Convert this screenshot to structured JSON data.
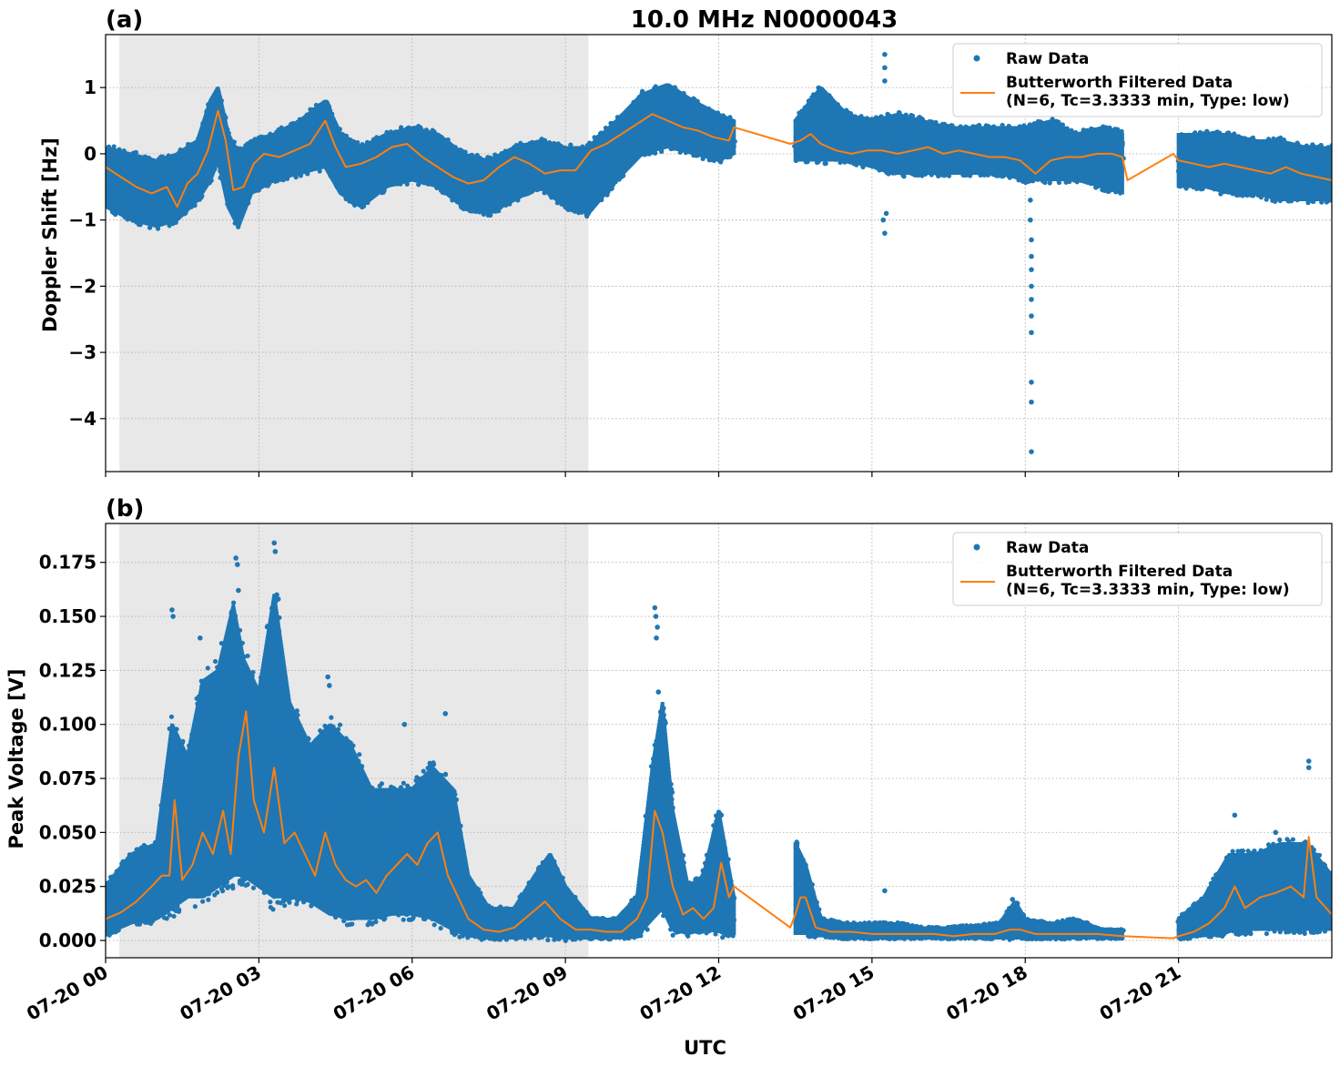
{
  "chart_data": [
    {
      "type": "scatter",
      "panel_label": "(a)",
      "title": "10.0 MHz N0000043",
      "xlabel": "",
      "ylabel": "Doppler Shift [Hz]",
      "xlim": [
        0,
        24
      ],
      "ylim": [
        -4.8,
        1.8
      ],
      "yticks": [
        1,
        0,
        -1,
        -2,
        -3,
        -4
      ],
      "ytick_labels": [
        "1",
        "0",
        "−1",
        "−2",
        "−3",
        "−4"
      ],
      "grid": true,
      "shaded_region": {
        "x": [
          0.27,
          9.45
        ],
        "color": "#e8e8e8"
      },
      "legend": {
        "position": "top-right",
        "entries": [
          "Raw Data",
          "Butterworth Filtered Data\n(N=6, Tc=3.3333 min, Type: low)"
        ]
      },
      "series": [
        {
          "name": "Raw Data",
          "color": "#1f77b4",
          "envelope_x": [
            0,
            0.5,
            1.0,
            1.4,
            1.8,
            2.05,
            2.2,
            2.4,
            2.6,
            2.85,
            3.3,
            3.8,
            4.3,
            4.6,
            5.0,
            5.5,
            6.0,
            6.5,
            7.0,
            7.5,
            8.0,
            8.5,
            9.0,
            9.45,
            10.0,
            10.5,
            11.0,
            11.5,
            12.0,
            12.3
          ],
          "envelope_low": [
            -0.8,
            -1.0,
            -1.1,
            -1.0,
            -0.7,
            -0.4,
            -0.1,
            -0.8,
            -1.1,
            -0.6,
            -0.4,
            -0.3,
            -0.2,
            -0.6,
            -0.8,
            -0.5,
            -0.4,
            -0.5,
            -0.8,
            -0.9,
            -0.7,
            -0.5,
            -0.8,
            -0.9,
            -0.4,
            0.0,
            0.1,
            0.0,
            -0.1,
            0.0
          ],
          "envelope_high": [
            0.1,
            0.0,
            -0.1,
            0.0,
            0.2,
            0.8,
            1.0,
            0.3,
            0.0,
            0.2,
            0.3,
            0.5,
            0.8,
            0.3,
            0.1,
            0.3,
            0.4,
            0.3,
            0.0,
            -0.1,
            0.1,
            0.2,
            0.1,
            0.1,
            0.5,
            0.9,
            1.05,
            0.8,
            0.6,
            0.5
          ],
          "envelope2_x": [
            13.5,
            14.0,
            14.5,
            15.0,
            15.5,
            16.0,
            16.5,
            17.0,
            17.5,
            18.0,
            18.5,
            19.0,
            19.5,
            19.9
          ],
          "envelope2_low": [
            -0.1,
            -0.1,
            -0.1,
            -0.2,
            -0.3,
            -0.3,
            -0.3,
            -0.3,
            -0.3,
            -0.4,
            -0.4,
            -0.4,
            -0.5,
            -0.6
          ],
          "envelope2_high": [
            0.5,
            1.0,
            0.6,
            0.5,
            0.6,
            0.5,
            0.4,
            0.4,
            0.4,
            0.4,
            0.5,
            0.3,
            0.4,
            0.3
          ],
          "envelope3_x": [
            21.0,
            21.5,
            22.0,
            22.5,
            23.0,
            23.5,
            24.0
          ],
          "envelope3_low": [
            -0.5,
            -0.5,
            -0.6,
            -0.6,
            -0.7,
            -0.7,
            -0.7
          ],
          "envelope3_high": [
            0.3,
            0.3,
            0.3,
            0.2,
            0.2,
            0.1,
            0.1
          ],
          "outliers": [
            [
              15.25,
              1.5
            ],
            [
              15.25,
              1.3
            ],
            [
              15.25,
              1.1
            ],
            [
              15.22,
              -1.0
            ],
            [
              15.25,
              -1.2
            ],
            [
              15.28,
              -0.9
            ],
            [
              18.1,
              -0.7
            ],
            [
              18.1,
              -1.0
            ],
            [
              18.12,
              -1.3
            ],
            [
              18.12,
              -1.55
            ],
            [
              18.12,
              -1.75
            ],
            [
              18.12,
              -2.0
            ],
            [
              18.12,
              -2.2
            ],
            [
              18.12,
              -2.45
            ],
            [
              18.12,
              -2.7
            ],
            [
              18.12,
              -3.45
            ],
            [
              18.12,
              -3.75
            ],
            [
              18.12,
              -4.5
            ]
          ]
        },
        {
          "name": "Butterworth Filtered Data\n(N=6, Tc=3.3333 min, Type: low)",
          "color": "#ff7f0e",
          "x": [
            0,
            0.3,
            0.6,
            0.9,
            1.2,
            1.4,
            1.6,
            1.8,
            2.0,
            2.2,
            2.35,
            2.5,
            2.7,
            2.9,
            3.1,
            3.4,
            3.7,
            4.0,
            4.3,
            4.5,
            4.7,
            5.0,
            5.3,
            5.6,
            5.9,
            6.2,
            6.5,
            6.8,
            7.1,
            7.4,
            7.7,
            8.0,
            8.3,
            8.6,
            8.9,
            9.2,
            9.5,
            9.8,
            10.1,
            10.4,
            10.7,
            11.0,
            11.3,
            11.6,
            11.9,
            12.2,
            12.3,
            13.4,
            13.6,
            13.8,
            14.0,
            14.3,
            14.6,
            14.9,
            15.2,
            15.5,
            15.8,
            16.1,
            16.4,
            16.7,
            17.0,
            17.3,
            17.6,
            17.9,
            18.2,
            18.5,
            18.8,
            19.1,
            19.4,
            19.7,
            19.9,
            20.0,
            20.9,
            21.0,
            21.3,
            21.6,
            21.9,
            22.2,
            22.5,
            22.8,
            23.1,
            23.4,
            23.7,
            24.0
          ],
          "y": [
            -0.2,
            -0.35,
            -0.5,
            -0.6,
            -0.5,
            -0.8,
            -0.45,
            -0.3,
            0.05,
            0.65,
            0.2,
            -0.55,
            -0.5,
            -0.15,
            0.0,
            -0.05,
            0.05,
            0.15,
            0.5,
            0.1,
            -0.2,
            -0.15,
            -0.05,
            0.1,
            0.15,
            -0.05,
            -0.2,
            -0.35,
            -0.45,
            -0.4,
            -0.2,
            -0.05,
            -0.15,
            -0.3,
            -0.25,
            -0.25,
            0.05,
            0.15,
            0.3,
            0.45,
            0.6,
            0.5,
            0.4,
            0.35,
            0.25,
            0.2,
            0.4,
            0.15,
            0.2,
            0.3,
            0.15,
            0.05,
            0.0,
            0.05,
            0.05,
            0.0,
            0.05,
            0.1,
            0.0,
            0.05,
            0.0,
            -0.05,
            -0.05,
            -0.1,
            -0.3,
            -0.1,
            -0.05,
            -0.05,
            0.0,
            0.0,
            -0.05,
            -0.4,
            0.0,
            -0.1,
            -0.15,
            -0.2,
            -0.15,
            -0.2,
            -0.25,
            -0.3,
            -0.2,
            -0.3,
            -0.35,
            -0.4
          ],
          "breaks_after_x": []
        }
      ]
    },
    {
      "type": "scatter",
      "panel_label": "(b)",
      "title": "",
      "xlabel": "UTC",
      "ylabel": "Peak Voltage [V]",
      "xlim": [
        0,
        24
      ],
      "ylim": [
        -0.008,
        0.193
      ],
      "yticks": [
        0.175,
        0.15,
        0.125,
        0.1,
        0.075,
        0.05,
        0.025,
        0.0
      ],
      "ytick_labels": [
        "0.175",
        "0.150",
        "0.125",
        "0.100",
        "0.075",
        "0.050",
        "0.025",
        "0.000"
      ],
      "xticks": [
        0,
        3,
        6,
        9,
        12,
        15,
        18,
        21
      ],
      "xtick_labels": [
        "07-20 00",
        "07-20 03",
        "07-20 06",
        "07-20 09",
        "07-20 12",
        "07-20 15",
        "07-20 18",
        "07-20 21"
      ],
      "grid": true,
      "shaded_region": {
        "x": [
          0.27,
          9.45
        ],
        "color": "#e8e8e8"
      },
      "legend": {
        "position": "top-right",
        "entries": [
          "Raw Data",
          "Butterworth Filtered Data\n(N=6, Tc=3.3333 min, Type: low)"
        ]
      },
      "series": [
        {
          "name": "Raw Data",
          "color": "#1f77b4",
          "envelope_x": [
            0,
            0.5,
            1.0,
            1.3,
            1.6,
            1.9,
            2.2,
            2.5,
            2.7,
            3.0,
            3.3,
            3.6,
            4.0,
            4.4,
            4.8,
            5.2,
            5.6,
            6.0,
            6.4,
            6.8,
            7.1,
            7.5,
            8.0,
            8.4,
            8.7,
            9.0,
            9.5,
            10.0,
            10.4,
            10.7,
            10.9,
            11.1,
            11.4,
            11.7,
            12.0,
            12.3
          ],
          "envelope_low": [
            0.003,
            0.008,
            0.01,
            0.015,
            0.02,
            0.02,
            0.025,
            0.03,
            0.03,
            0.025,
            0.02,
            0.02,
            0.018,
            0.012,
            0.01,
            0.01,
            0.012,
            0.012,
            0.01,
            0.005,
            0.002,
            0.001,
            0.001,
            0.002,
            0.002,
            0.001,
            0.001,
            0.001,
            0.002,
            0.01,
            0.015,
            0.005,
            0.003,
            0.005,
            0.004,
            0.003
          ],
          "envelope_high": [
            0.025,
            0.04,
            0.045,
            0.1,
            0.085,
            0.12,
            0.125,
            0.155,
            0.13,
            0.115,
            0.16,
            0.11,
            0.09,
            0.1,
            0.09,
            0.07,
            0.07,
            0.07,
            0.08,
            0.07,
            0.03,
            0.015,
            0.015,
            0.03,
            0.04,
            0.025,
            0.01,
            0.01,
            0.02,
            0.08,
            0.11,
            0.06,
            0.025,
            0.03,
            0.06,
            0.02
          ],
          "envelope2_x": [
            13.5,
            13.7,
            14.0,
            14.5,
            15.0,
            15.5,
            16.0,
            16.5,
            17.0,
            17.5,
            17.8,
            18.0,
            18.5,
            19.0,
            19.5,
            19.9
          ],
          "envelope2_low": [
            0.003,
            0.003,
            0.002,
            0.001,
            0.001,
            0.001,
            0.001,
            0.001,
            0.001,
            0.001,
            0.001,
            0.001,
            0.001,
            0.001,
            0.001,
            0.001
          ],
          "envelope2_high": [
            0.045,
            0.035,
            0.01,
            0.008,
            0.008,
            0.008,
            0.006,
            0.006,
            0.007,
            0.008,
            0.018,
            0.01,
            0.008,
            0.01,
            0.005,
            0.005
          ],
          "envelope3_x": [
            21.0,
            21.5,
            22.0,
            22.5,
            23.0,
            23.5,
            24.0
          ],
          "envelope3_low": [
            0.001,
            0.002,
            0.004,
            0.005,
            0.005,
            0.005,
            0.005
          ],
          "envelope3_high": [
            0.01,
            0.02,
            0.04,
            0.04,
            0.045,
            0.045,
            0.03
          ],
          "outliers": [
            [
              1.3,
              0.153
            ],
            [
              1.32,
              0.15
            ],
            [
              1.85,
              0.14
            ],
            [
              2.55,
              0.177
            ],
            [
              2.58,
              0.174
            ],
            [
              2.6,
              0.162
            ],
            [
              3.3,
              0.184
            ],
            [
              3.32,
              0.18
            ],
            [
              3.35,
              0.16
            ],
            [
              3.38,
              0.158
            ],
            [
              4.35,
              0.122
            ],
            [
              4.38,
              0.118
            ],
            [
              5.85,
              0.1
            ],
            [
              6.65,
              0.105
            ],
            [
              10.75,
              0.154
            ],
            [
              10.77,
              0.15
            ],
            [
              10.8,
              0.145
            ],
            [
              10.78,
              0.14
            ],
            [
              10.82,
              0.115
            ],
            [
              12.05,
              0.058
            ],
            [
              15.25,
              0.023
            ],
            [
              17.75,
              0.019
            ],
            [
              22.1,
              0.058
            ],
            [
              22.9,
              0.05
            ],
            [
              23.55,
              0.083
            ],
            [
              23.55,
              0.08
            ]
          ]
        },
        {
          "name": "Butterworth Filtered Data\n(N=6, Tc=3.3333 min, Type: low)",
          "color": "#ff7f0e",
          "x": [
            0,
            0.3,
            0.6,
            0.9,
            1.1,
            1.25,
            1.35,
            1.5,
            1.7,
            1.9,
            2.1,
            2.3,
            2.45,
            2.6,
            2.75,
            2.9,
            3.1,
            3.3,
            3.5,
            3.7,
            3.9,
            4.1,
            4.3,
            4.5,
            4.7,
            4.9,
            5.1,
            5.3,
            5.5,
            5.7,
            5.9,
            6.1,
            6.3,
            6.5,
            6.7,
            6.9,
            7.1,
            7.4,
            7.7,
            8.0,
            8.3,
            8.6,
            8.9,
            9.2,
            9.5,
            9.8,
            10.1,
            10.4,
            10.6,
            10.75,
            10.9,
            11.1,
            11.3,
            11.5,
            11.7,
            11.9,
            12.05,
            12.2,
            12.3,
            13.4,
            13.5,
            13.6,
            13.7,
            13.9,
            14.2,
            14.6,
            15.0,
            15.4,
            15.8,
            16.2,
            16.6,
            17.0,
            17.4,
            17.7,
            17.9,
            18.2,
            18.6,
            19.0,
            19.4,
            19.9,
            20.9,
            21.0,
            21.3,
            21.6,
            21.9,
            22.1,
            22.3,
            22.6,
            22.9,
            23.2,
            23.45,
            23.55,
            23.7,
            24.0
          ],
          "y": [
            0.01,
            0.013,
            0.018,
            0.025,
            0.03,
            0.03,
            0.065,
            0.028,
            0.035,
            0.05,
            0.04,
            0.06,
            0.04,
            0.085,
            0.106,
            0.065,
            0.05,
            0.08,
            0.045,
            0.05,
            0.04,
            0.03,
            0.05,
            0.035,
            0.028,
            0.025,
            0.028,
            0.022,
            0.03,
            0.035,
            0.04,
            0.035,
            0.045,
            0.05,
            0.03,
            0.02,
            0.01,
            0.005,
            0.004,
            0.006,
            0.012,
            0.018,
            0.01,
            0.005,
            0.005,
            0.004,
            0.004,
            0.01,
            0.02,
            0.06,
            0.05,
            0.025,
            0.012,
            0.015,
            0.01,
            0.015,
            0.036,
            0.02,
            0.025,
            0.006,
            0.012,
            0.02,
            0.02,
            0.006,
            0.004,
            0.004,
            0.003,
            0.003,
            0.003,
            0.003,
            0.002,
            0.003,
            0.003,
            0.005,
            0.005,
            0.003,
            0.003,
            0.003,
            0.003,
            0.002,
            0.001,
            0.002,
            0.004,
            0.008,
            0.015,
            0.025,
            0.015,
            0.02,
            0.022,
            0.025,
            0.02,
            0.048,
            0.02,
            0.012
          ],
          "breaks_after_x": []
        }
      ]
    }
  ]
}
